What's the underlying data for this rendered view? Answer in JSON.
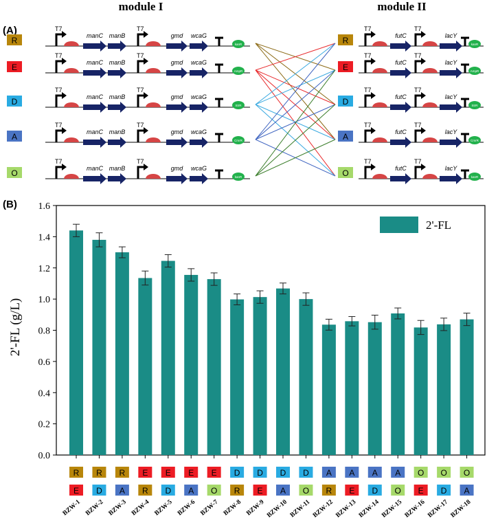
{
  "panel_a": {
    "label": "(A)",
    "module1_title": "module I",
    "module2_title": "module II",
    "promoter": "T7",
    "module1_genes": [
      "manC",
      "manB",
      "gmd",
      "wcaG"
    ],
    "module2_genes": [
      "futC",
      "lacY"
    ],
    "plasmids": [
      {
        "letter": "R",
        "color": "#b8860b",
        "marker_m1": "kanR",
        "marker_m2": "kanR"
      },
      {
        "letter": "E",
        "color": "#ed1c24",
        "marker_m1": "AmpR",
        "marker_m2": "AmpR"
      },
      {
        "letter": "D",
        "color": "#29abe2",
        "marker_m1": "StrR",
        "marker_m2": "StrR"
      },
      {
        "letter": "A",
        "color": "#4a74c4",
        "marker_m1": "CmrR",
        "marker_m2": "CmrR"
      },
      {
        "letter": "O",
        "color": "#a6d96a",
        "marker_m1": "kanR",
        "marker_m2": "kanR"
      }
    ],
    "line_colors": {
      "R": "#8b6914",
      "E": "#e8282b",
      "D": "#3aa9e0",
      "A": "#3e64c0",
      "O": "#3a7d2a"
    }
  },
  "panel_b_label": "(B)",
  "chart_data": {
    "type": "bar",
    "title": "",
    "xlabel": "",
    "ylabel": "2'-FL (g/L)",
    "legend": "2'-FL",
    "legend_position": "top-right",
    "ylim": [
      0.0,
      1.6
    ],
    "yticks": [
      "0.0",
      "0.2",
      "0.4",
      "0.6",
      "0.8",
      "1.0",
      "1.2",
      "1.4",
      "1.6"
    ],
    "bar_color": "#1a8c86",
    "categories": [
      "BZW-1",
      "BZW-2",
      "BZW-3",
      "BZW-4",
      "BZW-5",
      "BZW-6",
      "BZW-7",
      "BZW-8",
      "BZW-9",
      "BZW-10",
      "BZW-11",
      "BZW-12",
      "BZW-13",
      "BZW-14",
      "BZW-15",
      "BZW-16",
      "BZW-17",
      "BZW-18"
    ],
    "values": [
      1.44,
      1.38,
      1.3,
      1.135,
      1.245,
      1.155,
      1.128,
      0.998,
      1.013,
      1.068,
      1.0,
      0.836,
      0.858,
      0.852,
      0.908,
      0.818,
      0.838,
      0.87
    ],
    "errors": [
      0.04,
      0.045,
      0.035,
      0.045,
      0.04,
      0.04,
      0.04,
      0.035,
      0.04,
      0.035,
      0.04,
      0.035,
      0.03,
      0.045,
      0.035,
      0.045,
      0.04,
      0.04
    ],
    "module1_row": [
      "R",
      "R",
      "R",
      "E",
      "E",
      "E",
      "E",
      "D",
      "D",
      "D",
      "D",
      "A",
      "A",
      "A",
      "A",
      "O",
      "O",
      "O"
    ],
    "module2_row": [
      "E",
      "D",
      "A",
      "R",
      "D",
      "A",
      "O",
      "R",
      "E",
      "A",
      "O",
      "R",
      "E",
      "D",
      "O",
      "E",
      "D",
      "A"
    ]
  }
}
